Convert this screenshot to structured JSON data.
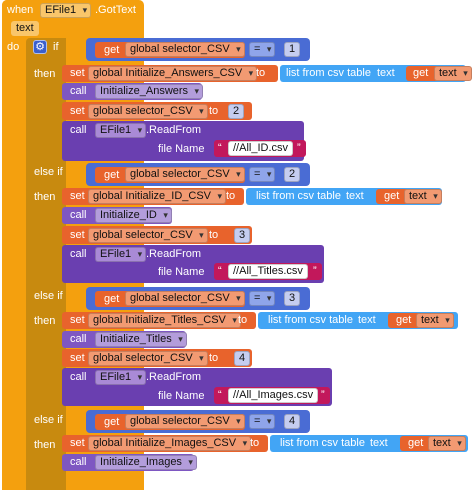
{
  "event": {
    "when_label": "when",
    "component": "EFile1",
    "event_name": ".GotText",
    "param": "text",
    "do_label": "do"
  },
  "labels": {
    "if": "if",
    "then": "then",
    "else_if": "else if",
    "get": "get",
    "set": "set",
    "to": "to",
    "call": "call",
    "eq": "=",
    "list_from_csv": "list from csv table",
    "text_socket": "text",
    "read_from": ".ReadFrom",
    "file_name": "file Name",
    "var_text": "text"
  },
  "branches": [
    {
      "condition_var": "global selector_CSV",
      "condition_value": "1",
      "set_var": "global Initialize_Answers_CSV",
      "call_proc": "Initialize_Answers",
      "next_value": "2",
      "file": "//All_ID.csv"
    },
    {
      "condition_var": "global selector_CSV",
      "condition_value": "2",
      "set_var": "global Initialize_ID_CSV",
      "call_proc": "Initialize_ID",
      "next_value": "3",
      "file": "//All_Titles.csv"
    },
    {
      "condition_var": "global selector_CSV",
      "condition_value": "3",
      "set_var": "global Initialize_Titles_CSV",
      "call_proc": "Initialize_Titles",
      "next_value": "4",
      "file": "//All_Images.csv"
    },
    {
      "condition_var": "global selector_CSV",
      "condition_value": "4",
      "set_var": "global Initialize_Images_CSV",
      "call_proc": "Initialize_Images"
    }
  ],
  "setter_var": "global selector_CSV",
  "file_component": "EFile1",
  "colors": {
    "event": "#f4a00e",
    "control": "#c88a0f",
    "logic": "#4a6cd4",
    "math": "#3f51b5",
    "variable": "#e8632c",
    "list": "#42a5f5",
    "procedure": "#7e57c2",
    "component": "#6a3fb0",
    "text": "#c2185b"
  }
}
